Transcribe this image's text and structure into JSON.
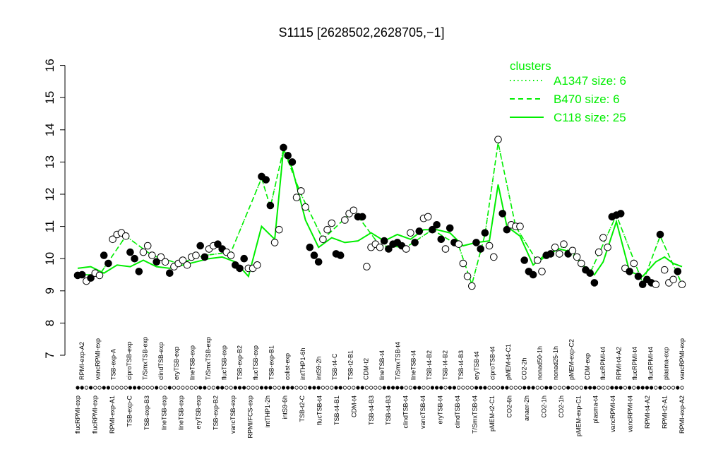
{
  "chart_data": {
    "type": "line",
    "title": "S1115 [2628502,2628705,−1]",
    "xlabel": "",
    "ylabel": "",
    "ylim": [
      7,
      16
    ],
    "yticks": [
      7,
      8,
      9,
      10,
      11,
      12,
      13,
      14,
      15,
      16
    ],
    "grid": false,
    "legend": {
      "position": "top-right",
      "title": "clusters",
      "entries": [
        {
          "label": "A1347 size: 6",
          "style": "dotted"
        },
        {
          "label": "B470 size: 6",
          "style": "dashed"
        },
        {
          "label": "C118 size: 25",
          "style": "solid"
        }
      ]
    },
    "colors": {
      "series": "#00ee00",
      "points_filled": "#000000",
      "points_open": "#ffffff",
      "legend": "#00ee00"
    },
    "x_tick_labels_top": [
      "RPMI-exp-A2",
      "vancRPMI-exp",
      "TSB-exp-A",
      "ciproTSB-exp",
      "T/SmxTSB-exp",
      "clindTSB-exp",
      "eryTSB-exp",
      "lineTSB-exp",
      "T/SmxTSB-exp",
      "flucTSB-exp",
      "TSB-exp-B2",
      "flucTSB-exp",
      "TSB-exp-B1",
      "colist-exp",
      "intTHP1-6h",
      "intS9-2h",
      "TSB-t4-C",
      "TSB-t2-B1",
      "CDM-t2",
      "lineTSB-t4",
      "T/SmxTSB-t4",
      "lineTSB-t4",
      "TSB-t4-B2",
      "TSB-t4-B2",
      "TSB-t4-B3",
      "eryTSB-t4",
      "ciproTSB-t4",
      "pMEM-t4-C1",
      "CO2-2h",
      "nonad50-1h",
      "nonad25-1h",
      "pMEM-exp-C2",
      "CDM-exp",
      "flucRPMI-t4",
      "RPMI-t4-A2",
      "flucRPMI-t4",
      "flucRPMI-t4",
      "plasma-exp",
      "vancRPMI-exp"
    ],
    "x_tick_labels_bottom": [
      "flucRPMI-exp",
      "flucRPMI-exp",
      "RPMI-exp-A1",
      "TSB-exp-C",
      "TSB-exp-B3",
      "lineTSB-exp",
      "lineTSB-exp",
      "eryTSB-exp",
      "TSB-exp-B2",
      "vancTSB-exp",
      "RPMI/FCS-exp",
      "intTHP1-2h",
      "intS9-6h",
      "TSB-t2-C",
      "flucTSB-t4",
      "TSB-t4-B1",
      "CDM-t4",
      "TSB-t4-B3",
      "TSB-t4-B3",
      "clindTSB-t4",
      "vancTSB-t4",
      "eryTSB-t4",
      "clindTSB-t4",
      "T/SmxTSB-t4",
      "pMEM-t2-C1",
      "CO2-6h",
      "anaer-2h",
      "CO2-1h",
      "CO2-1h",
      "pMEM-exp-C1",
      "plasma-t4",
      "vancRPMI-t4",
      "vancRPMI-t4",
      "RPMI-t4-A2",
      "RPMI-t2-A1",
      "RPMI-exp-A2"
    ],
    "points": [
      {
        "x": 1,
        "y": 9.48,
        "filled": true
      },
      {
        "x": 2,
        "y": 9.5,
        "filled": true
      },
      {
        "x": 3,
        "y": 9.3,
        "filled": false
      },
      {
        "x": 4,
        "y": 9.4,
        "filled": true
      },
      {
        "x": 5,
        "y": 9.55,
        "filled": false
      },
      {
        "x": 6,
        "y": 9.48,
        "filled": false
      },
      {
        "x": 7,
        "y": 10.1,
        "filled": true
      },
      {
        "x": 8,
        "y": 9.85,
        "filled": true
      },
      {
        "x": 9,
        "y": 10.6,
        "filled": false
      },
      {
        "x": 10,
        "y": 10.75,
        "filled": false
      },
      {
        "x": 11,
        "y": 10.8,
        "filled": false
      },
      {
        "x": 12,
        "y": 10.7,
        "filled": false
      },
      {
        "x": 13,
        "y": 10.2,
        "filled": true
      },
      {
        "x": 14,
        "y": 10.0,
        "filled": true
      },
      {
        "x": 15,
        "y": 9.6,
        "filled": true
      },
      {
        "x": 16,
        "y": 10.2,
        "filled": false
      },
      {
        "x": 17,
        "y": 10.4,
        "filled": false
      },
      {
        "x": 18,
        "y": 10.1,
        "filled": false
      },
      {
        "x": 19,
        "y": 9.9,
        "filled": true
      },
      {
        "x": 20,
        "y": 10.05,
        "filled": false
      },
      {
        "x": 21,
        "y": 9.9,
        "filled": false
      },
      {
        "x": 22,
        "y": 9.55,
        "filled": true
      },
      {
        "x": 23,
        "y": 9.75,
        "filled": false
      },
      {
        "x": 24,
        "y": 9.85,
        "filled": false
      },
      {
        "x": 25,
        "y": 9.95,
        "filled": false
      },
      {
        "x": 26,
        "y": 9.8,
        "filled": false
      },
      {
        "x": 27,
        "y": 10.05,
        "filled": false
      },
      {
        "x": 28,
        "y": 10.1,
        "filled": false
      },
      {
        "x": 29,
        "y": 10.4,
        "filled": true
      },
      {
        "x": 30,
        "y": 10.05,
        "filled": true
      },
      {
        "x": 31,
        "y": 10.3,
        "filled": false
      },
      {
        "x": 32,
        "y": 10.4,
        "filled": false
      },
      {
        "x": 33,
        "y": 10.45,
        "filled": true
      },
      {
        "x": 34,
        "y": 10.3,
        "filled": true
      },
      {
        "x": 35,
        "y": 10.2,
        "filled": false
      },
      {
        "x": 36,
        "y": 10.1,
        "filled": false
      },
      {
        "x": 37,
        "y": 9.8,
        "filled": true
      },
      {
        "x": 38,
        "y": 9.7,
        "filled": true
      },
      {
        "x": 39,
        "y": 10.0,
        "filled": true
      },
      {
        "x": 40,
        "y": 9.7,
        "filled": false
      },
      {
        "x": 41,
        "y": 9.7,
        "filled": false
      },
      {
        "x": 42,
        "y": 9.8,
        "filled": false
      },
      {
        "x": 43,
        "y": 12.55,
        "filled": true
      },
      {
        "x": 44,
        "y": 12.45,
        "filled": true
      },
      {
        "x": 45,
        "y": 11.65,
        "filled": true
      },
      {
        "x": 46,
        "y": 10.5,
        "filled": false
      },
      {
        "x": 47,
        "y": 10.9,
        "filled": false
      },
      {
        "x": 48,
        "y": 13.45,
        "filled": true
      },
      {
        "x": 49,
        "y": 13.2,
        "filled": true
      },
      {
        "x": 50,
        "y": 13.0,
        "filled": true
      },
      {
        "x": 51,
        "y": 11.9,
        "filled": false
      },
      {
        "x": 52,
        "y": 12.1,
        "filled": false
      },
      {
        "x": 53,
        "y": 11.6,
        "filled": false
      },
      {
        "x": 54,
        "y": 10.35,
        "filled": true
      },
      {
        "x": 55,
        "y": 10.1,
        "filled": true
      },
      {
        "x": 56,
        "y": 9.9,
        "filled": true
      },
      {
        "x": 57,
        "y": 10.6,
        "filled": false
      },
      {
        "x": 58,
        "y": 10.9,
        "filled": false
      },
      {
        "x": 59,
        "y": 11.1,
        "filled": false
      },
      {
        "x": 60,
        "y": 10.15,
        "filled": true
      },
      {
        "x": 61,
        "y": 10.1,
        "filled": true
      },
      {
        "x": 62,
        "y": 11.2,
        "filled": false
      },
      {
        "x": 63,
        "y": 11.4,
        "filled": false
      },
      {
        "x": 64,
        "y": 11.5,
        "filled": false
      },
      {
        "x": 65,
        "y": 11.3,
        "filled": true
      },
      {
        "x": 66,
        "y": 11.3,
        "filled": true
      },
      {
        "x": 67,
        "y": 9.75,
        "filled": false
      },
      {
        "x": 68,
        "y": 10.35,
        "filled": false
      },
      {
        "x": 69,
        "y": 10.45,
        "filled": false
      },
      {
        "x": 70,
        "y": 10.35,
        "filled": false
      },
      {
        "x": 71,
        "y": 10.55,
        "filled": true
      },
      {
        "x": 72,
        "y": 10.3,
        "filled": true
      },
      {
        "x": 73,
        "y": 10.45,
        "filled": true
      },
      {
        "x": 74,
        "y": 10.5,
        "filled": true
      },
      {
        "x": 75,
        "y": 10.4,
        "filled": true
      },
      {
        "x": 76,
        "y": 10.3,
        "filled": false
      },
      {
        "x": 77,
        "y": 10.8,
        "filled": false
      },
      {
        "x": 78,
        "y": 10.5,
        "filled": true
      },
      {
        "x": 79,
        "y": 10.85,
        "filled": true
      },
      {
        "x": 80,
        "y": 11.25,
        "filled": false
      },
      {
        "x": 81,
        "y": 11.3,
        "filled": false
      },
      {
        "x": 82,
        "y": 10.9,
        "filled": true
      },
      {
        "x": 83,
        "y": 11.05,
        "filled": true
      },
      {
        "x": 84,
        "y": 10.6,
        "filled": true
      },
      {
        "x": 85,
        "y": 10.3,
        "filled": false
      },
      {
        "x": 86,
        "y": 10.95,
        "filled": true
      },
      {
        "x": 87,
        "y": 10.5,
        "filled": true
      },
      {
        "x": 88,
        "y": 10.45,
        "filled": false
      },
      {
        "x": 89,
        "y": 9.85,
        "filled": false
      },
      {
        "x": 90,
        "y": 9.45,
        "filled": false
      },
      {
        "x": 91,
        "y": 9.15,
        "filled": false
      },
      {
        "x": 92,
        "y": 10.5,
        "filled": true
      },
      {
        "x": 93,
        "y": 10.3,
        "filled": true
      },
      {
        "x": 94,
        "y": 10.8,
        "filled": true
      },
      {
        "x": 95,
        "y": 10.4,
        "filled": false
      },
      {
        "x": 96,
        "y": 10.05,
        "filled": false
      },
      {
        "x": 97,
        "y": 13.7,
        "filled": false
      },
      {
        "x": 98,
        "y": 11.4,
        "filled": true
      },
      {
        "x": 99,
        "y": 10.9,
        "filled": true
      },
      {
        "x": 100,
        "y": 11.05,
        "filled": false
      },
      {
        "x": 101,
        "y": 11.0,
        "filled": false
      },
      {
        "x": 102,
        "y": 11.0,
        "filled": false
      },
      {
        "x": 103,
        "y": 9.95,
        "filled": true
      },
      {
        "x": 104,
        "y": 9.6,
        "filled": true
      },
      {
        "x": 105,
        "y": 9.5,
        "filled": true
      },
      {
        "x": 106,
        "y": 9.95,
        "filled": false
      },
      {
        "x": 107,
        "y": 9.6,
        "filled": false
      },
      {
        "x": 108,
        "y": 10.1,
        "filled": true
      },
      {
        "x": 109,
        "y": 10.15,
        "filled": true
      },
      {
        "x": 110,
        "y": 10.35,
        "filled": false
      },
      {
        "x": 111,
        "y": 10.15,
        "filled": false
      },
      {
        "x": 112,
        "y": 10.45,
        "filled": false
      },
      {
        "x": 113,
        "y": 10.15,
        "filled": true
      },
      {
        "x": 114,
        "y": 10.25,
        "filled": false
      },
      {
        "x": 115,
        "y": 10.05,
        "filled": false
      },
      {
        "x": 116,
        "y": 9.85,
        "filled": false
      },
      {
        "x": 117,
        "y": 9.65,
        "filled": true
      },
      {
        "x": 118,
        "y": 9.55,
        "filled": true
      },
      {
        "x": 119,
        "y": 9.25,
        "filled": true
      },
      {
        "x": 120,
        "y": 10.2,
        "filled": false
      },
      {
        "x": 121,
        "y": 10.65,
        "filled": false
      },
      {
        "x": 122,
        "y": 10.35,
        "filled": false
      },
      {
        "x": 123,
        "y": 11.3,
        "filled": true
      },
      {
        "x": 124,
        "y": 11.35,
        "filled": true
      },
      {
        "x": 125,
        "y": 11.4,
        "filled": true
      },
      {
        "x": 126,
        "y": 9.7,
        "filled": false
      },
      {
        "x": 127,
        "y": 9.6,
        "filled": true
      },
      {
        "x": 128,
        "y": 9.85,
        "filled": false
      },
      {
        "x": 129,
        "y": 9.45,
        "filled": true
      },
      {
        "x": 130,
        "y": 9.2,
        "filled": true
      },
      {
        "x": 131,
        "y": 9.35,
        "filled": true
      },
      {
        "x": 132,
        "y": 9.25,
        "filled": true
      },
      {
        "x": 133,
        "y": 9.2,
        "filled": false
      },
      {
        "x": 134,
        "y": 10.75,
        "filled": true
      },
      {
        "x": 135,
        "y": 9.65,
        "filled": false
      },
      {
        "x": 136,
        "y": 9.25,
        "filled": false
      },
      {
        "x": 137,
        "y": 9.35,
        "filled": false
      },
      {
        "x": 138,
        "y": 9.6,
        "filled": true
      },
      {
        "x": 139,
        "y": 9.2,
        "filled": false
      }
    ],
    "series": [
      {
        "name": "C118 size: 25",
        "style": "solid",
        "x": [
          1,
          4,
          7,
          10,
          13,
          16,
          19,
          22,
          25,
          28,
          31,
          34,
          37,
          40,
          43,
          46,
          48,
          50,
          53,
          56,
          59,
          62,
          65,
          68,
          71,
          74,
          77,
          80,
          83,
          86,
          89,
          92,
          95,
          97,
          99,
          102,
          105,
          108,
          111,
          114,
          117,
          119,
          121,
          124,
          127,
          130,
          133,
          135,
          137,
          139
        ],
        "y": [
          9.7,
          9.75,
          9.55,
          9.8,
          9.75,
          9.95,
          9.75,
          9.7,
          9.8,
          9.9,
          10.0,
          10.05,
          9.9,
          9.45,
          11.0,
          10.6,
          13.4,
          12.8,
          11.2,
          10.35,
          10.65,
          10.5,
          10.55,
          10.8,
          10.55,
          10.75,
          10.6,
          10.9,
          10.9,
          10.8,
          10.4,
          10.5,
          10.55,
          12.3,
          11.0,
          10.7,
          9.8,
          10.15,
          10.3,
          10.2,
          9.7,
          9.5,
          9.9,
          11.15,
          9.6,
          9.45,
          9.9,
          10.05,
          9.85,
          9.75
        ]
      },
      {
        "name": "B470 size: 6",
        "style": "dashed",
        "x": [
          1,
          6,
          12,
          18,
          24,
          30,
          36,
          43,
          45,
          48,
          52,
          57,
          64,
          70,
          76,
          82,
          88,
          91,
          94,
          97,
          101,
          106,
          112,
          118,
          124,
          130,
          134,
          139
        ],
        "y": [
          9.5,
          9.5,
          10.7,
          10.1,
          9.85,
          10.1,
          10.2,
          12.5,
          11.6,
          13.4,
          12.0,
          10.6,
          11.5,
          10.4,
          10.35,
          10.9,
          10.4,
          9.2,
          10.75,
          13.6,
          11.0,
          9.9,
          10.4,
          9.55,
          11.35,
          9.25,
          10.7,
          9.2
        ]
      },
      {
        "name": "A1347 size: 6",
        "style": "dotted",
        "x": [
          1,
          6,
          12,
          18,
          24,
          30,
          36,
          43,
          45,
          48,
          52,
          57,
          64,
          70,
          76,
          82,
          88,
          91,
          94,
          97,
          101,
          106,
          112,
          118,
          124,
          130,
          134,
          139
        ],
        "y": [
          9.5,
          9.5,
          10.7,
          10.1,
          9.85,
          10.1,
          10.2,
          12.5,
          11.6,
          13.4,
          12.0,
          10.6,
          11.5,
          10.4,
          10.35,
          10.9,
          10.4,
          9.2,
          10.75,
          13.6,
          11.0,
          9.9,
          10.4,
          9.55,
          11.35,
          9.25,
          10.7,
          9.2
        ]
      }
    ]
  }
}
